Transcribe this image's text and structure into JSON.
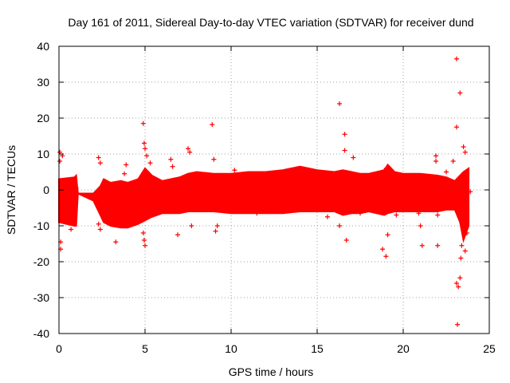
{
  "chart_data": {
    "type": "scatter",
    "title": "Day 161 of 2011, Sidereal Day-to-day VTEC variation (SDTVAR) for receiver dund",
    "xlabel": "GPS time / hours",
    "ylabel": "SDTVAR / TECUs",
    "xlim": [
      0,
      25
    ],
    "ylim": [
      -40,
      40
    ],
    "xticks": [
      "0",
      "5",
      "10",
      "15",
      "20",
      "25"
    ],
    "yticks": [
      "-40",
      "-30",
      "-20",
      "-10",
      "0",
      "10",
      "20",
      "30",
      "40"
    ],
    "grid": true,
    "marker": "+",
    "color": "#ff0000",
    "band": {
      "x": [
        0,
        0.9,
        1.0,
        1.1,
        2,
        2.4,
        2.6,
        3,
        3.6,
        4,
        4.6,
        5,
        5.4,
        6,
        6.5,
        7,
        7.5,
        8,
        9,
        10,
        11,
        12,
        13,
        14,
        15,
        16,
        16.5,
        17,
        17.5,
        18,
        18.9,
        19.1,
        19.5,
        20,
        21,
        22,
        22.5,
        23,
        23.3,
        23.5,
        23.8
      ],
      "upper": [
        3,
        3.5,
        4,
        -1,
        -1,
        1,
        3,
        2,
        2.5,
        2,
        3,
        6,
        4,
        2.5,
        3,
        3.5,
        4.5,
        5,
        4.5,
        4.5,
        5,
        5,
        5.5,
        6.5,
        5.5,
        5,
        5.5,
        5,
        4.5,
        4.5,
        5.5,
        7,
        5,
        4.5,
        4.5,
        4,
        3.5,
        2.5,
        4,
        5,
        6
      ],
      "lower": [
        -9,
        -10,
        -10,
        -1,
        -3,
        -7,
        -9,
        -10,
        -10.5,
        -10.5,
        -9.5,
        -8.5,
        -7.5,
        -6.5,
        -6.5,
        -6.5,
        -6,
        -6,
        -6,
        -6.5,
        -6.5,
        -6.5,
        -6.5,
        -6,
        -6,
        -6,
        -7,
        -6.5,
        -6.5,
        -6,
        -7,
        -6.5,
        -6,
        -6,
        -6,
        -6,
        -5.5,
        -5.5,
        -9,
        -14,
        -10
      ]
    },
    "points": [
      {
        "x": 0.05,
        "y": 10.5
      },
      {
        "x": 0.05,
        "y": 8
      },
      {
        "x": 0.1,
        "y": -14.5
      },
      {
        "x": 0.1,
        "y": -16.5
      },
      {
        "x": 0.2,
        "y": 9.5
      },
      {
        "x": 0.7,
        "y": -11
      },
      {
        "x": 1.0,
        "y": 0.5
      },
      {
        "x": 2.3,
        "y": 9
      },
      {
        "x": 2.4,
        "y": 7.5
      },
      {
        "x": 2.3,
        "y": -9.5
      },
      {
        "x": 2.4,
        "y": -11
      },
      {
        "x": 3.3,
        "y": -14.5
      },
      {
        "x": 3.8,
        "y": 4.5
      },
      {
        "x": 3.9,
        "y": 7
      },
      {
        "x": 4.9,
        "y": 18.5
      },
      {
        "x": 4.95,
        "y": 13
      },
      {
        "x": 5.0,
        "y": 11.5
      },
      {
        "x": 5.1,
        "y": 9.5
      },
      {
        "x": 4.9,
        "y": -12
      },
      {
        "x": 4.95,
        "y": -14
      },
      {
        "x": 5.0,
        "y": -15.5
      },
      {
        "x": 5.3,
        "y": 7.5
      },
      {
        "x": 6.5,
        "y": 8.5
      },
      {
        "x": 6.6,
        "y": 6.5
      },
      {
        "x": 6.9,
        "y": -12.5
      },
      {
        "x": 7.5,
        "y": 11.5
      },
      {
        "x": 7.6,
        "y": 10.5
      },
      {
        "x": 7.7,
        "y": -10
      },
      {
        "x": 8.9,
        "y": 18.2
      },
      {
        "x": 9.0,
        "y": 8.5
      },
      {
        "x": 9.1,
        "y": -11.5
      },
      {
        "x": 9.2,
        "y": -10
      },
      {
        "x": 10.2,
        "y": 5.5
      },
      {
        "x": 11.5,
        "y": -6.5
      },
      {
        "x": 15.6,
        "y": -7.5
      },
      {
        "x": 16.3,
        "y": 24
      },
      {
        "x": 16.3,
        "y": -10
      },
      {
        "x": 16.6,
        "y": 15.5
      },
      {
        "x": 16.6,
        "y": 11
      },
      {
        "x": 16.7,
        "y": -14
      },
      {
        "x": 17.1,
        "y": 9
      },
      {
        "x": 17.5,
        "y": -6.5
      },
      {
        "x": 18.8,
        "y": -16.5
      },
      {
        "x": 18.9,
        "y": 5.5
      },
      {
        "x": 19.0,
        "y": -18.5
      },
      {
        "x": 19.1,
        "y": -12.5
      },
      {
        "x": 19.6,
        "y": -7
      },
      {
        "x": 20.9,
        "y": -6.5
      },
      {
        "x": 21.0,
        "y": -10
      },
      {
        "x": 21.1,
        "y": -15.5
      },
      {
        "x": 21.9,
        "y": 9.5
      },
      {
        "x": 21.9,
        "y": 8
      },
      {
        "x": 22.0,
        "y": -15.5
      },
      {
        "x": 22.0,
        "y": -7
      },
      {
        "x": 22.5,
        "y": 5
      },
      {
        "x": 22.9,
        "y": 8
      },
      {
        "x": 23.0,
        "y": -5
      },
      {
        "x": 23.1,
        "y": 36.5
      },
      {
        "x": 23.1,
        "y": 17.5
      },
      {
        "x": 23.1,
        "y": -26
      },
      {
        "x": 23.2,
        "y": -27
      },
      {
        "x": 23.15,
        "y": -37.5
      },
      {
        "x": 23.3,
        "y": 27
      },
      {
        "x": 23.3,
        "y": -24.5
      },
      {
        "x": 23.35,
        "y": -19
      },
      {
        "x": 23.5,
        "y": 12
      },
      {
        "x": 23.6,
        "y": 10.5
      },
      {
        "x": 23.7,
        "y": -12
      },
      {
        "x": 23.9,
        "y": -0.5
      },
      {
        "x": 23.4,
        "y": -15.5
      },
      {
        "x": 23.6,
        "y": -17
      }
    ]
  }
}
